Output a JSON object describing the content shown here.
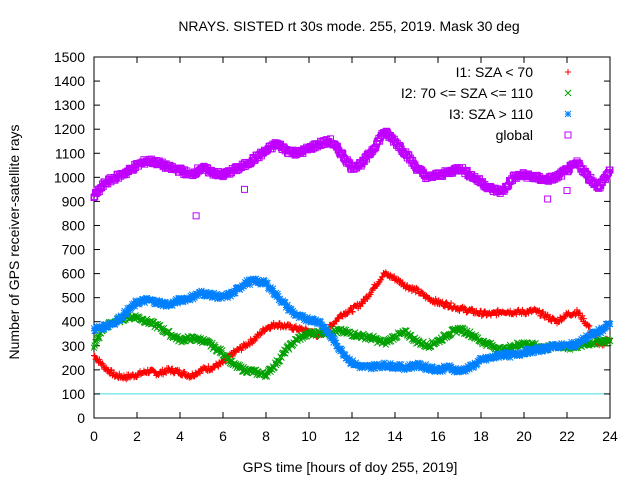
{
  "chart_data": {
    "type": "scatter",
    "title": "NRAYS. SISTED rt 30s mode. 255, 2019. Mask 30 deg",
    "xlabel": "GPS time [hours of doy 255, 2019]",
    "ylabel": "Number of GPS receiver-satellite rays",
    "xlim": [
      0,
      24
    ],
    "ylim": [
      0,
      1500
    ],
    "x_ticks": [
      "0",
      "2",
      "4",
      "6",
      "8",
      "10",
      "12",
      "14",
      "16",
      "18",
      "20",
      "22",
      "24"
    ],
    "y_ticks": [
      "0",
      "100",
      "200",
      "300",
      "400",
      "500",
      "600",
      "700",
      "800",
      "900",
      "1000",
      "1100",
      "1200",
      "1300",
      "1400",
      "1500"
    ],
    "reference_line": {
      "y": 100,
      "color": "#40e0e8"
    },
    "legend_position": "top-right",
    "series": [
      {
        "name": "I1: SZA < 70",
        "marker": "+",
        "color": "#ff0000",
        "points": [
          [
            0,
            260
          ],
          [
            0.5,
            210
          ],
          [
            1,
            175
          ],
          [
            1.5,
            170
          ],
          [
            2,
            180
          ],
          [
            2.5,
            195
          ],
          [
            3,
            185
          ],
          [
            3.5,
            200
          ],
          [
            4,
            190
          ],
          [
            4.5,
            175
          ],
          [
            5,
            200
          ],
          [
            5.5,
            210
          ],
          [
            6,
            230
          ],
          [
            6.5,
            270
          ],
          [
            7,
            300
          ],
          [
            7.5,
            330
          ],
          [
            8,
            375
          ],
          [
            8.5,
            390
          ],
          [
            9,
            380
          ],
          [
            9.5,
            370
          ],
          [
            10,
            360
          ],
          [
            10.5,
            340
          ],
          [
            11,
            380
          ],
          [
            11.5,
            430
          ],
          [
            12,
            450
          ],
          [
            12.5,
            480
          ],
          [
            13,
            540
          ],
          [
            13.5,
            600
          ],
          [
            14,
            580
          ],
          [
            14.5,
            550
          ],
          [
            15,
            530
          ],
          [
            15.5,
            500
          ],
          [
            16,
            480
          ],
          [
            16.5,
            470
          ],
          [
            17,
            455
          ],
          [
            17.5,
            445
          ],
          [
            18,
            435
          ],
          [
            18.5,
            430
          ],
          [
            19,
            445
          ],
          [
            19.5,
            440
          ],
          [
            20,
            440
          ],
          [
            20.5,
            445
          ],
          [
            21,
            425
          ],
          [
            21.5,
            400
          ],
          [
            22,
            430
          ],
          [
            22.5,
            440
          ],
          [
            23,
            380
          ],
          [
            23.5,
            300
          ],
          [
            24,
            330
          ]
        ]
      },
      {
        "name": "I2: 70 <= SZA <= 110",
        "marker": "x",
        "color": "#00a000",
        "points": [
          [
            0,
            300
          ],
          [
            0.5,
            380
          ],
          [
            1,
            400
          ],
          [
            1.5,
            420
          ],
          [
            2,
            420
          ],
          [
            2.5,
            400
          ],
          [
            3,
            380
          ],
          [
            3.5,
            350
          ],
          [
            4,
            325
          ],
          [
            4.5,
            330
          ],
          [
            5,
            325
          ],
          [
            5.5,
            300
          ],
          [
            6,
            270
          ],
          [
            6.5,
            220
          ],
          [
            7,
            200
          ],
          [
            7.5,
            190
          ],
          [
            8,
            180
          ],
          [
            8.5,
            230
          ],
          [
            9,
            290
          ],
          [
            9.5,
            330
          ],
          [
            10,
            350
          ],
          [
            10.5,
            355
          ],
          [
            11,
            360
          ],
          [
            11.5,
            360
          ],
          [
            12,
            350
          ],
          [
            12.5,
            340
          ],
          [
            13,
            330
          ],
          [
            13.5,
            310
          ],
          [
            14,
            340
          ],
          [
            14.5,
            355
          ],
          [
            15,
            320
          ],
          [
            15.5,
            300
          ],
          [
            16,
            320
          ],
          [
            16.5,
            350
          ],
          [
            17,
            370
          ],
          [
            17.5,
            350
          ],
          [
            18,
            320
          ],
          [
            18.5,
            300
          ],
          [
            19,
            280
          ],
          [
            19.5,
            300
          ],
          [
            20,
            310
          ],
          [
            20.5,
            300
          ],
          [
            21,
            290
          ],
          [
            21.5,
            300
          ],
          [
            22,
            290
          ],
          [
            22.5,
            300
          ],
          [
            23,
            310
          ],
          [
            23.5,
            320
          ],
          [
            24,
            320
          ]
        ]
      },
      {
        "name": "I3: SZA > 110",
        "marker": "*",
        "color": "#0080ff",
        "points": [
          [
            0,
            370
          ],
          [
            0.5,
            380
          ],
          [
            1,
            400
          ],
          [
            1.5,
            440
          ],
          [
            2,
            480
          ],
          [
            2.5,
            490
          ],
          [
            3,
            480
          ],
          [
            3.5,
            470
          ],
          [
            4,
            490
          ],
          [
            4.5,
            500
          ],
          [
            5,
            520
          ],
          [
            5.5,
            510
          ],
          [
            6,
            500
          ],
          [
            6.5,
            520
          ],
          [
            7,
            560
          ],
          [
            7.5,
            570
          ],
          [
            8,
            560
          ],
          [
            8.5,
            510
          ],
          [
            9,
            460
          ],
          [
            9.5,
            420
          ],
          [
            10,
            410
          ],
          [
            10.5,
            400
          ],
          [
            11,
            340
          ],
          [
            11.5,
            280
          ],
          [
            12,
            230
          ],
          [
            12.5,
            210
          ],
          [
            13,
            215
          ],
          [
            13.5,
            220
          ],
          [
            14,
            215
          ],
          [
            14.5,
            210
          ],
          [
            15,
            220
          ],
          [
            15.5,
            210
          ],
          [
            16,
            200
          ],
          [
            16.5,
            210
          ],
          [
            17,
            195
          ],
          [
            17.5,
            210
          ],
          [
            18,
            240
          ],
          [
            18.5,
            250
          ],
          [
            19,
            265
          ],
          [
            19.5,
            260
          ],
          [
            20,
            275
          ],
          [
            20.5,
            280
          ],
          [
            21,
            290
          ],
          [
            21.5,
            300
          ],
          [
            22,
            300
          ],
          [
            22.5,
            310
          ],
          [
            23,
            340
          ],
          [
            23.5,
            360
          ],
          [
            24,
            390
          ]
        ]
      },
      {
        "name": "global",
        "marker": "square",
        "color": "#c000ff",
        "points": [
          [
            0,
            920
          ],
          [
            0.5,
            975
          ],
          [
            1,
            1000
          ],
          [
            1.5,
            1020
          ],
          [
            2,
            1050
          ],
          [
            2.5,
            1070
          ],
          [
            3,
            1060
          ],
          [
            3.5,
            1040
          ],
          [
            4,
            1030
          ],
          [
            4.5,
            1010
          ],
          [
            5,
            1040
          ],
          [
            5.5,
            1020
          ],
          [
            6,
            1010
          ],
          [
            6.5,
            1030
          ],
          [
            7,
            1050
          ],
          [
            7.5,
            1080
          ],
          [
            8,
            1110
          ],
          [
            8.5,
            1140
          ],
          [
            9,
            1110
          ],
          [
            9.5,
            1100
          ],
          [
            10,
            1120
          ],
          [
            10.5,
            1140
          ],
          [
            11,
            1150
          ],
          [
            11.5,
            1100
          ],
          [
            12,
            1040
          ],
          [
            12.5,
            1060
          ],
          [
            13,
            1120
          ],
          [
            13.5,
            1190
          ],
          [
            14,
            1150
          ],
          [
            14.5,
            1100
          ],
          [
            15,
            1040
          ],
          [
            15.5,
            1000
          ],
          [
            16,
            1010
          ],
          [
            16.5,
            1020
          ],
          [
            17,
            1040
          ],
          [
            17.5,
            1010
          ],
          [
            18,
            980
          ],
          [
            18.5,
            950
          ],
          [
            19,
            940
          ],
          [
            19.5,
            1000
          ],
          [
            20,
            1010
          ],
          [
            20.5,
            1000
          ],
          [
            21,
            990
          ],
          [
            21.5,
            1000
          ],
          [
            22,
            1030
          ],
          [
            22.5,
            1060
          ],
          [
            23,
            1000
          ],
          [
            23.5,
            960
          ],
          [
            24,
            1030
          ]
        ],
        "outliers": [
          [
            4.75,
            840
          ],
          [
            7,
            950
          ],
          [
            22,
            945
          ],
          [
            21.1,
            910
          ]
        ]
      }
    ]
  }
}
